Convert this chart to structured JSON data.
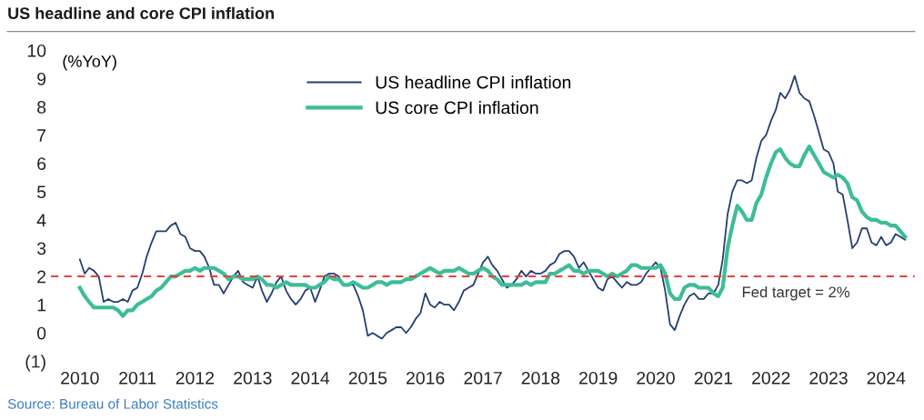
{
  "chart_data": {
    "type": "line",
    "title": "US headline and core CPI inflation",
    "ylabel": "(%YoY)",
    "x": [
      "2010-01",
      "2010-02",
      "2010-03",
      "2010-04",
      "2010-05",
      "2010-06",
      "2010-07",
      "2010-08",
      "2010-09",
      "2010-10",
      "2010-11",
      "2010-12",
      "2011-01",
      "2011-02",
      "2011-03",
      "2011-04",
      "2011-05",
      "2011-06",
      "2011-07",
      "2011-08",
      "2011-09",
      "2011-10",
      "2011-11",
      "2011-12",
      "2012-01",
      "2012-02",
      "2012-03",
      "2012-04",
      "2012-05",
      "2012-06",
      "2012-07",
      "2012-08",
      "2012-09",
      "2012-10",
      "2012-11",
      "2012-12",
      "2013-01",
      "2013-02",
      "2013-03",
      "2013-04",
      "2013-05",
      "2013-06",
      "2013-07",
      "2013-08",
      "2013-09",
      "2013-10",
      "2013-11",
      "2013-12",
      "2014-01",
      "2014-02",
      "2014-03",
      "2014-04",
      "2014-05",
      "2014-06",
      "2014-07",
      "2014-08",
      "2014-09",
      "2014-10",
      "2014-11",
      "2014-12",
      "2015-01",
      "2015-02",
      "2015-03",
      "2015-04",
      "2015-05",
      "2015-06",
      "2015-07",
      "2015-08",
      "2015-09",
      "2015-10",
      "2015-11",
      "2015-12",
      "2016-01",
      "2016-02",
      "2016-03",
      "2016-04",
      "2016-05",
      "2016-06",
      "2016-07",
      "2016-08",
      "2016-09",
      "2016-10",
      "2016-11",
      "2016-12",
      "2017-01",
      "2017-02",
      "2017-03",
      "2017-04",
      "2017-05",
      "2017-06",
      "2017-07",
      "2017-08",
      "2017-09",
      "2017-10",
      "2017-11",
      "2017-12",
      "2018-01",
      "2018-02",
      "2018-03",
      "2018-04",
      "2018-05",
      "2018-06",
      "2018-07",
      "2018-08",
      "2018-09",
      "2018-10",
      "2018-11",
      "2018-12",
      "2019-01",
      "2019-02",
      "2019-03",
      "2019-04",
      "2019-05",
      "2019-06",
      "2019-07",
      "2019-08",
      "2019-09",
      "2019-10",
      "2019-11",
      "2019-12",
      "2020-01",
      "2020-02",
      "2020-03",
      "2020-04",
      "2020-05",
      "2020-06",
      "2020-07",
      "2020-08",
      "2020-09",
      "2020-10",
      "2020-11",
      "2020-12",
      "2021-01",
      "2021-02",
      "2021-03",
      "2021-04",
      "2021-05",
      "2021-06",
      "2021-07",
      "2021-08",
      "2021-09",
      "2021-10",
      "2021-11",
      "2021-12",
      "2022-01",
      "2022-02",
      "2022-03",
      "2022-04",
      "2022-05",
      "2022-06",
      "2022-07",
      "2022-08",
      "2022-09",
      "2022-10",
      "2022-11",
      "2022-12",
      "2023-01",
      "2023-02",
      "2023-03",
      "2023-04",
      "2023-05",
      "2023-06",
      "2023-07",
      "2023-08",
      "2023-09",
      "2023-10",
      "2023-11",
      "2023-12",
      "2024-01",
      "2024-02",
      "2024-03",
      "2024-04",
      "2024-05"
    ],
    "series": [
      {
        "name": "US headline CPI inflation",
        "color": "#243f6e",
        "values": [
          2.6,
          2.1,
          2.3,
          2.2,
          2.0,
          1.1,
          1.2,
          1.1,
          1.1,
          1.2,
          1.1,
          1.5,
          1.6,
          2.1,
          2.7,
          3.2,
          3.6,
          3.6,
          3.6,
          3.8,
          3.9,
          3.5,
          3.4,
          3.0,
          2.9,
          2.9,
          2.7,
          2.3,
          1.7,
          1.7,
          1.4,
          1.7,
          2.0,
          2.2,
          1.8,
          1.7,
          1.6,
          2.0,
          1.5,
          1.1,
          1.4,
          1.8,
          2.0,
          1.5,
          1.2,
          1.0,
          1.2,
          1.5,
          1.6,
          1.1,
          1.5,
          2.0,
          2.1,
          2.1,
          2.0,
          1.7,
          1.7,
          1.7,
          1.3,
          0.8,
          -0.1,
          0.0,
          -0.1,
          -0.2,
          0.0,
          0.1,
          0.2,
          0.2,
          0.0,
          0.2,
          0.5,
          0.7,
          1.4,
          1.0,
          0.9,
          1.1,
          1.0,
          1.0,
          0.8,
          1.1,
          1.5,
          1.6,
          1.7,
          2.1,
          2.5,
          2.7,
          2.4,
          2.2,
          1.9,
          1.6,
          1.7,
          1.9,
          2.2,
          2.0,
          2.2,
          2.1,
          2.1,
          2.2,
          2.4,
          2.5,
          2.8,
          2.9,
          2.9,
          2.7,
          2.3,
          2.5,
          2.2,
          1.9,
          1.6,
          1.5,
          1.9,
          2.0,
          1.8,
          1.6,
          1.8,
          1.7,
          1.7,
          1.8,
          2.1,
          2.3,
          2.5,
          2.3,
          1.5,
          0.3,
          0.1,
          0.6,
          1.0,
          1.3,
          1.4,
          1.2,
          1.2,
          1.4,
          1.4,
          1.7,
          2.6,
          4.2,
          5.0,
          5.4,
          5.4,
          5.3,
          5.4,
          6.2,
          6.8,
          7.0,
          7.5,
          7.9,
          8.5,
          8.3,
          8.6,
          9.1,
          8.5,
          8.3,
          8.2,
          7.7,
          7.1,
          6.5,
          6.4,
          6.0,
          5.0,
          4.9,
          4.0,
          3.0,
          3.2,
          3.7,
          3.7,
          3.2,
          3.1,
          3.4,
          3.1,
          3.2,
          3.5,
          3.4,
          3.3
        ]
      },
      {
        "name": "US core CPI inflation",
        "color": "#3dbd98",
        "values": [
          1.6,
          1.3,
          1.1,
          0.9,
          0.9,
          0.9,
          0.9,
          0.9,
          0.8,
          0.6,
          0.8,
          0.8,
          1.0,
          1.1,
          1.2,
          1.3,
          1.5,
          1.6,
          1.8,
          2.0,
          2.0,
          2.1,
          2.2,
          2.2,
          2.3,
          2.2,
          2.3,
          2.3,
          2.3,
          2.2,
          2.1,
          1.9,
          2.0,
          2.0,
          1.9,
          1.9,
          1.9,
          2.0,
          1.9,
          1.7,
          1.7,
          1.6,
          1.7,
          1.8,
          1.7,
          1.7,
          1.7,
          1.7,
          1.6,
          1.6,
          1.7,
          1.8,
          2.0,
          1.9,
          1.9,
          1.7,
          1.7,
          1.8,
          1.7,
          1.6,
          1.6,
          1.7,
          1.8,
          1.8,
          1.7,
          1.8,
          1.8,
          1.8,
          1.9,
          1.9,
          2.0,
          2.1,
          2.2,
          2.3,
          2.2,
          2.1,
          2.2,
          2.2,
          2.2,
          2.3,
          2.2,
          2.1,
          2.1,
          2.2,
          2.3,
          2.2,
          2.0,
          1.9,
          1.7,
          1.7,
          1.7,
          1.7,
          1.7,
          1.8,
          1.7,
          1.8,
          1.8,
          1.8,
          2.1,
          2.1,
          2.2,
          2.3,
          2.4,
          2.2,
          2.2,
          2.1,
          2.2,
          2.2,
          2.2,
          2.1,
          2.0,
          2.1,
          2.0,
          2.1,
          2.2,
          2.4,
          2.4,
          2.3,
          2.3,
          2.3,
          2.3,
          2.4,
          2.1,
          1.4,
          1.2,
          1.2,
          1.6,
          1.7,
          1.7,
          1.6,
          1.6,
          1.6,
          1.4,
          1.3,
          1.6,
          3.0,
          3.8,
          4.5,
          4.3,
          4.0,
          4.0,
          4.6,
          4.9,
          5.5,
          6.0,
          6.4,
          6.5,
          6.2,
          6.0,
          5.9,
          5.9,
          6.3,
          6.6,
          6.3,
          6.0,
          5.7,
          5.6,
          5.5,
          5.6,
          5.5,
          5.3,
          4.8,
          4.7,
          4.3,
          4.1,
          4.0,
          4.0,
          3.9,
          3.9,
          3.8,
          3.8,
          3.6,
          3.4
        ]
      }
    ],
    "xlim": [
      "2009-07",
      "2024-07"
    ],
    "xticks": [
      "2010",
      "2011",
      "2012",
      "2013",
      "2014",
      "2015",
      "2016",
      "2017",
      "2018",
      "2019",
      "2020",
      "2021",
      "2022",
      "2023",
      "2024"
    ],
    "ylim": [
      -1,
      10
    ],
    "yticks": [
      {
        "value": -1,
        "label": "(1)"
      },
      0,
      1,
      2,
      3,
      4,
      5,
      6,
      7,
      8,
      9,
      10
    ],
    "ref_lines": [
      {
        "axis": "y",
        "value": 2,
        "label": "Fed target = 2%",
        "color": "#e8413c",
        "line_style": "dashed"
      }
    ],
    "legend": "top",
    "grid": false,
    "annotations": [
      "Source: Bureau of Labor Statistics"
    ]
  }
}
